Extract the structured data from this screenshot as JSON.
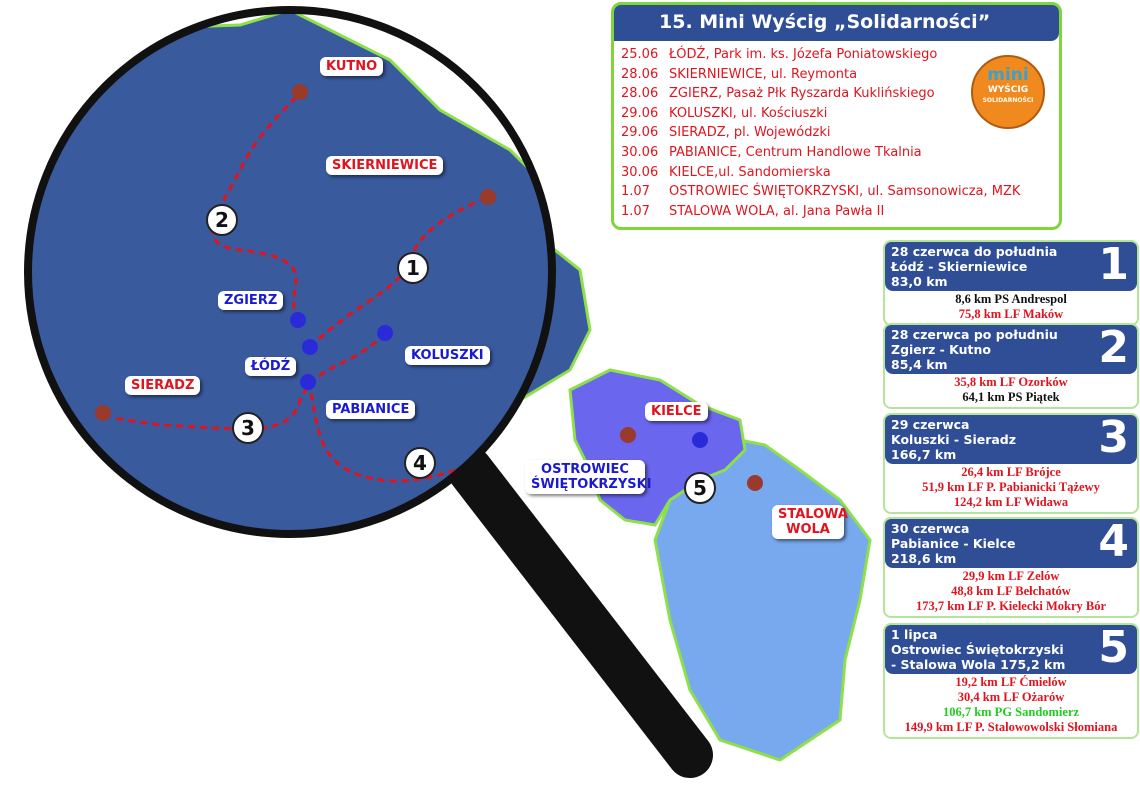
{
  "title": "15. Mini Wyścig „Solidarności”",
  "logo": {
    "line1": "mini",
    "line2": "WYŚCIG",
    "line3": "SOLIDARNOŚCI"
  },
  "schedule": [
    {
      "date": "25.06",
      "place": "ŁÓDŹ, Park im. ks. Józefa Poniatowskiego"
    },
    {
      "date": "28.06",
      "place": "SKIERNIEWICE, ul. Reymonta"
    },
    {
      "date": "28.06",
      "place": "ZGIERZ, Pasaż Płk Ryszarda Kuklińskiego"
    },
    {
      "date": "29.06",
      "place": "KOLUSZKI, ul. Kościuszki"
    },
    {
      "date": "29.06",
      "place": "SIERADZ, pl. Wojewódzki"
    },
    {
      "date": "30.06",
      "place": "PABIANICE, Centrum Handlowe Tkalnia"
    },
    {
      "date": "30.06",
      "place": "KIELCE,ul. Sandomierska"
    },
    {
      "date": "1.07",
      "place": "OSTROWIEC ŚWIĘTOKRZYSKI, ul. Samsonowicza, MZK"
    },
    {
      "date": "1.07",
      "place": "STALOWA WOLA, al. Jana Pawła II"
    }
  ],
  "cities": {
    "kutno": "KUTNO",
    "skierniewice": "SKIERNIEWICE",
    "zgierz": "ZGIERZ",
    "lodz": "ŁÓDŹ",
    "koluszki": "KOLUSZKI",
    "pabianice": "PABIANICE",
    "sieradz": "SIERADZ",
    "kielce": "KIELCE",
    "ostrowiec": "OSTROWIEC ŚWIĘTOKRZYSKI",
    "stalowa": "STALOWA WOLA"
  },
  "stage_numbers": [
    "1",
    "2",
    "3",
    "4",
    "5"
  ],
  "stages": [
    {
      "num": "1",
      "l1": "28 czerwca do południa",
      "l2": " Łódź - Skierniewice",
      "l3": "83,0 km",
      "points": [
        {
          "t": "8,6 km  PS Andrespol",
          "c": "#111"
        },
        {
          "t": "75,8 km  LF Maków",
          "c": "#e0141e"
        }
      ]
    },
    {
      "num": "2",
      "l1": "28 czerwca po południu",
      "l2": "Zgierz - Kutno",
      "l3": "85,4 km",
      "points": [
        {
          "t": "35,8 km  LF Ozorków",
          "c": "#e0141e"
        },
        {
          "t": "64,1 km  PS Piątek",
          "c": "#111"
        }
      ]
    },
    {
      "num": "3",
      "l1": "29 czerwca",
      "l2": "Koluszki - Sieradz",
      "l3": "166,7 km",
      "points": [
        {
          "t": "26,4 km  LF  Brójce",
          "c": "#e0141e"
        },
        {
          "t": "51,9 km  LF  P. Pabianicki Tążewy",
          "c": "#e0141e"
        },
        {
          "t": "124,2 km  LF Widawa",
          "c": "#e0141e"
        }
      ]
    },
    {
      "num": "4",
      "l1": "30 czerwca",
      "l2": "Pabianice - Kielce",
      "l3": "218,6 km",
      "points": [
        {
          "t": "29,9 km  LF  Zelów",
          "c": "#e0141e"
        },
        {
          "t": "48,8 km  LF  Bełchatów",
          "c": "#e0141e"
        },
        {
          "t": "173,7 km  LF  P. Kielecki Mokry Bór",
          "c": "#e0141e"
        }
      ]
    },
    {
      "num": "5",
      "l1": "1 lipca",
      "l2": "Ostrowiec Świętokrzyski",
      "l3": "- Stalowa Wola  175,2 km",
      "points": [
        {
          "t": "19,2 km  LF Ćmielów",
          "c": "#e0141e"
        },
        {
          "t": "30,4 km  LF Ożarów",
          "c": "#e0141e"
        },
        {
          "t": "106,7 km  PG Sandomierz",
          "c": "#22cc22"
        },
        {
          "t": "149,9 km  LF P. Stalowowolski  Słomiana",
          "c": "#e0141e"
        }
      ]
    }
  ],
  "colors": {
    "lodzkie": "#3a5a9e",
    "swietokrzyskie": "#6a66ee",
    "podkarpackie": "#78a8ee",
    "route": "#e0141e",
    "border": "#8ee04a",
    "header": "#2f4e96"
  }
}
